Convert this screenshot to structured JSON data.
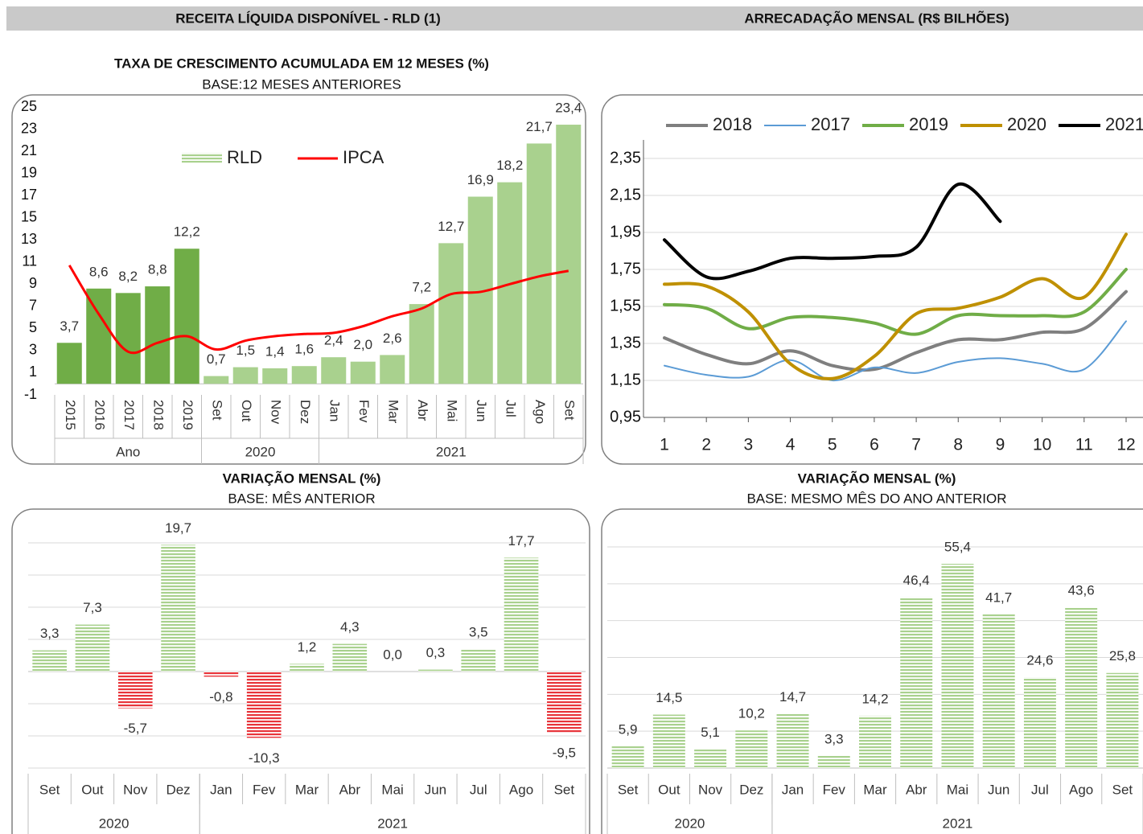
{
  "headers": [
    "RECEITA LÍQUIDA DISPONÍVEL - RLD (1)",
    "ARRECADAÇÃO MENSAL (R$ BILHÕES)"
  ],
  "chart_data": [
    {
      "type": "bar",
      "title": "TAXA DE CRESCIMENTO ACUMULADA EM 12 MESES (%)",
      "subtitle": "BASE:12 MESES ANTERIORES",
      "categories": [
        "2015",
        "2016",
        "2017",
        "2018",
        "2019",
        "Set",
        "Out",
        "Nov",
        "Dez",
        "Jan",
        "Fev",
        "Mar",
        "Abr",
        "Mai",
        "Jun",
        "Jul",
        "Ago",
        "Set"
      ],
      "groups": [
        {
          "label": "Ano",
          "count": 5
        },
        {
          "label": "2020",
          "count": 4
        },
        {
          "label": "2021",
          "count": 9
        }
      ],
      "series": [
        {
          "name": "RLD",
          "type": "bar",
          "color": "#a9d18e",
          "colors": [
            "#70ad47",
            "#70ad47",
            "#70ad47",
            "#70ad47",
            "#70ad47",
            "#a9d18e",
            "#a9d18e",
            "#a9d18e",
            "#a9d18e",
            "#a9d18e",
            "#a9d18e",
            "#a9d18e",
            "#a9d18e",
            "#a9d18e",
            "#a9d18e",
            "#a9d18e",
            "#a9d18e",
            "#a9d18e"
          ],
          "values": [
            3.7,
            8.6,
            8.2,
            8.8,
            12.2,
            0.7,
            1.5,
            1.4,
            1.6,
            2.4,
            2.0,
            2.6,
            7.2,
            12.7,
            16.9,
            18.2,
            21.7,
            23.4
          ],
          "value_labels": [
            "3,7",
            "8,6",
            "8,2",
            "8,8",
            "12,2",
            "0,7",
            "1,5",
            "1,4",
            "1,6",
            "2,4",
            "2,0",
            "2,6",
            "7,2",
            "12,7",
            "16,9",
            "18,2",
            "21,7",
            "23,4"
          ]
        },
        {
          "name": "IPCA",
          "type": "line",
          "color": "#ff0000",
          "values": [
            10.7,
            6.3,
            2.9,
            3.7,
            4.3,
            3.1,
            3.9,
            4.3,
            4.5,
            4.6,
            5.2,
            6.1,
            6.8,
            8.1,
            8.3,
            9.0,
            9.7,
            10.2
          ]
        }
      ],
      "ylim": [
        -1,
        25
      ],
      "yticks": [
        -1,
        1,
        3,
        5,
        7,
        9,
        11,
        13,
        15,
        17,
        19,
        21,
        23,
        25
      ],
      "grid": false
    },
    {
      "type": "line",
      "x": [
        1,
        2,
        3,
        4,
        5,
        6,
        7,
        8,
        9,
        10,
        11,
        12
      ],
      "series": [
        {
          "name": "2018",
          "color": "#7f7f7f",
          "values": [
            1.38,
            1.29,
            1.24,
            1.31,
            1.23,
            1.21,
            1.3,
            1.37,
            1.37,
            1.41,
            1.43,
            1.63
          ]
        },
        {
          "name": "2017",
          "color": "#5b9bd5",
          "values": [
            1.23,
            1.18,
            1.17,
            1.26,
            1.15,
            1.22,
            1.19,
            1.25,
            1.27,
            1.24,
            1.21,
            1.47
          ]
        },
        {
          "name": "2019",
          "color": "#70ad47",
          "values": [
            1.56,
            1.54,
            1.43,
            1.49,
            1.49,
            1.46,
            1.4,
            1.5,
            1.5,
            1.5,
            1.52,
            1.75
          ]
        },
        {
          "name": "2020",
          "color": "#bf9000",
          "values": [
            1.67,
            1.66,
            1.52,
            1.24,
            1.16,
            1.28,
            1.51,
            1.54,
            1.6,
            1.7,
            1.6,
            1.94
          ]
        },
        {
          "name": "2021",
          "color": "#000000",
          "values": [
            1.91,
            1.71,
            1.74,
            1.81,
            1.81,
            1.82,
            1.87,
            2.21,
            2.01,
            null,
            null,
            null
          ]
        }
      ],
      "xlim": [
        1,
        12
      ],
      "xticks": [
        1,
        2,
        3,
        4,
        5,
        6,
        7,
        8,
        9,
        10,
        11,
        12
      ],
      "ylim": [
        0.95,
        2.45
      ],
      "yticks": [
        {
          "value": 0.95,
          "label": "0,95"
        },
        {
          "value": 1.15,
          "label": "1,15"
        },
        {
          "value": 1.35,
          "label": "1,35"
        },
        {
          "value": 1.55,
          "label": "1,55"
        },
        {
          "value": 1.75,
          "label": "1,75"
        },
        {
          "value": 1.95,
          "label": "1,95"
        },
        {
          "value": 2.15,
          "label": "2,15"
        },
        {
          "value": 2.35,
          "label": "2,35"
        }
      ],
      "grid": true,
      "legend": "top",
      "smooth": true
    },
    {
      "type": "bar",
      "title": "VARIAÇÃO MENSAL (%)",
      "subtitle": "BASE: MÊS ANTERIOR",
      "categories": [
        "Set",
        "Out",
        "Nov",
        "Dez",
        "Jan",
        "Fev",
        "Mar",
        "Abr",
        "Mai",
        "Jun",
        "Jul",
        "Ago",
        "Set"
      ],
      "groups": [
        {
          "label": "2020",
          "count": 4
        },
        {
          "label": "2021",
          "count": 9
        }
      ],
      "values": [
        3.3,
        7.3,
        -5.7,
        19.7,
        -0.8,
        -10.3,
        1.2,
        4.3,
        0.0,
        0.3,
        3.5,
        17.7,
        -9.5
      ],
      "value_labels": [
        "3,3",
        "7,3",
        "-5,7",
        "19,7",
        "-0,8",
        "-10,3",
        "1,2",
        "4,3",
        "0,0",
        "0,3",
        "3,5",
        "17,7",
        "-9,5"
      ],
      "color": "#a9d18e",
      "negative_color": "#e8343a",
      "striped": true,
      "ylim": [
        -15,
        20
      ],
      "yticks": [
        -15,
        -10,
        -5,
        0,
        5,
        10,
        15,
        20
      ],
      "grid": true
    },
    {
      "type": "bar",
      "title": "VARIAÇÃO MENSAL (%)",
      "subtitle": "BASE: MESMO MÊS DO ANO ANTERIOR",
      "categories": [
        "Set",
        "Out",
        "Nov",
        "Dez",
        "Jan",
        "Fev",
        "Mar",
        "Abr",
        "Mai",
        "Jun",
        "Jul",
        "Ago",
        "Set"
      ],
      "groups": [
        {
          "label": "2020",
          "count": 4
        },
        {
          "label": "2021",
          "count": 9
        }
      ],
      "values": [
        5.9,
        14.5,
        5.1,
        10.2,
        14.7,
        3.3,
        14.2,
        46.4,
        55.4,
        41.7,
        24.6,
        43.6,
        25.8
      ],
      "value_labels": [
        "5,9",
        "14,5",
        "5,1",
        "10,2",
        "14,7",
        "3,3",
        "14,2",
        "46,4",
        "55,4",
        "41,7",
        "24,6",
        "43,6",
        "25,8"
      ],
      "color": "#a9d18e",
      "striped": true,
      "ylim": [
        0,
        60
      ],
      "yticks": [
        0,
        10,
        20,
        30,
        40,
        50,
        60
      ],
      "grid": true
    }
  ]
}
